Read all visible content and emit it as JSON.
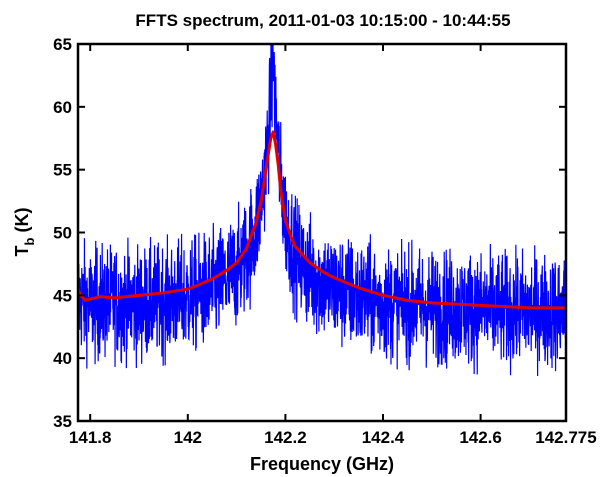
{
  "chart_data": {
    "type": "line",
    "title": "FFTS spectrum, 2011-01-03 10:15:00 - 10:44:55",
    "xlabel": "Frequency (GHz)",
    "ylabel": {
      "main": "T",
      "subscript": "b",
      "unit": " (K)"
    },
    "xlim": [
      141.775,
      142.775
    ],
    "ylim": [
      35,
      65
    ],
    "xticks": [
      {
        "value": 141.8,
        "label": "141.8"
      },
      {
        "value": 142.0,
        "label": "142"
      },
      {
        "value": 142.2,
        "label": "142.2"
      },
      {
        "value": 142.4,
        "label": "142.4"
      },
      {
        "value": 142.6,
        "label": "142.6"
      },
      {
        "value": 142.775,
        "label": "142.775"
      }
    ],
    "yticks": [
      {
        "value": 35,
        "label": "35"
      },
      {
        "value": 40,
        "label": "40"
      },
      {
        "value": 45,
        "label": "45"
      },
      {
        "value": 50,
        "label": "50"
      },
      {
        "value": 55,
        "label": "55"
      },
      {
        "value": 60,
        "label": "60"
      },
      {
        "value": 65,
        "label": "65"
      }
    ],
    "grid": false,
    "series": [
      {
        "color": "#0000ff",
        "style": "noisy raw spectrum",
        "x": [
          141.775,
          141.8,
          141.85,
          141.9,
          141.95,
          142.0,
          142.05,
          142.08,
          142.1,
          142.12,
          142.14,
          142.15,
          142.16,
          142.17,
          142.175,
          142.18,
          142.19,
          142.2,
          142.22,
          142.25,
          142.3,
          142.35,
          142.4,
          142.5,
          142.6,
          142.7,
          142.775
        ],
        "values": [
          44.8,
          44.2,
          44.5,
          44.3,
          44.6,
          44.9,
          45.5,
          46.3,
          47.0,
          48.2,
          50.3,
          52.5,
          55.5,
          60.5,
          64.0,
          60.0,
          54.0,
          51.0,
          48.2,
          46.7,
          45.5,
          44.9,
          44.4,
          44.1,
          43.9,
          43.8,
          43.7
        ],
        "noise_amplitude_K": 3.0
      },
      {
        "color": "#e00000",
        "style": "smoothed",
        "x": [
          141.775,
          141.78,
          141.79,
          141.8,
          141.82,
          141.85,
          141.9,
          141.95,
          142.0,
          142.02,
          142.05,
          142.08,
          142.1,
          142.12,
          142.14,
          142.15,
          142.16,
          142.17,
          142.175,
          142.18,
          142.185,
          142.19,
          142.2,
          142.21,
          142.22,
          142.25,
          142.28,
          142.3,
          142.35,
          142.4,
          142.45,
          142.5,
          142.55,
          142.6,
          142.65,
          142.7,
          142.75,
          142.775
        ],
        "values": [
          45.5,
          45.0,
          44.6,
          44.7,
          44.9,
          44.8,
          45.0,
          45.2,
          45.5,
          45.8,
          46.3,
          47.0,
          47.6,
          48.7,
          50.8,
          52.4,
          55.0,
          57.5,
          58.0,
          57.0,
          55.5,
          53.5,
          51.0,
          49.8,
          48.9,
          47.6,
          46.8,
          46.4,
          45.6,
          45.0,
          44.6,
          44.4,
          44.3,
          44.2,
          44.1,
          44.0,
          44.0,
          44.0
        ]
      }
    ]
  }
}
